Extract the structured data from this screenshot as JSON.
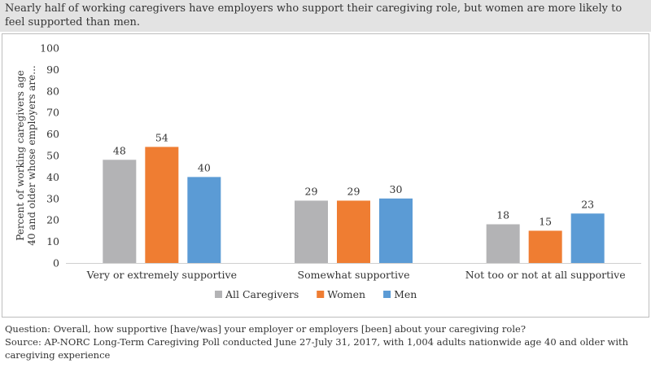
{
  "title": "Nearly half of working caregivers have employers who support their caregiving role, but women are more likely to feel supported than men.",
  "question": "Question: Overall, how supportive [have/was] your employer or employers [been] about your caregiving role?",
  "source": "Source: AP-NORC Long-Term Caregiving Poll conducted June 27-July 31, 2017, with 1,004 adults nationwide age 40 and older with caregiving experience",
  "chart_data": {
    "type": "bar",
    "title": "",
    "xlabel": "",
    "ylabel": "Percent of working caregivers age 40 and older whose employers are...",
    "ylabel_lines": [
      "Percent of working caregivers age",
      "40 and older whose employers are..."
    ],
    "ylim": [
      0,
      100
    ],
    "yticks": [
      0,
      10,
      20,
      30,
      40,
      50,
      60,
      70,
      80,
      90,
      100
    ],
    "grid": false,
    "legend_position": "bottom",
    "categories": [
      "Very or extremely supportive",
      "Somewhat supportive",
      "Not too or not at all supportive"
    ],
    "series": [
      {
        "name": "All Caregivers",
        "color": "#b3b3b5",
        "values": [
          48,
          29,
          18
        ]
      },
      {
        "name": "Women",
        "color": "#ef7d32",
        "values": [
          54,
          29,
          15
        ]
      },
      {
        "name": "Men",
        "color": "#5b9bd5",
        "values": [
          40,
          30,
          23
        ]
      }
    ]
  }
}
